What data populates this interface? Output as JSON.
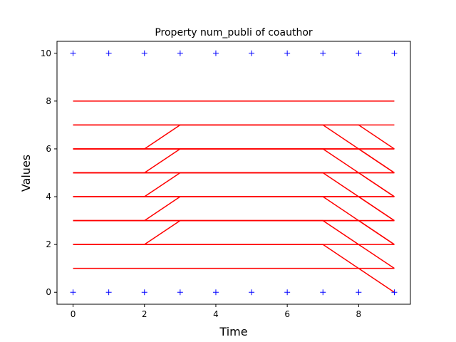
{
  "chart_data": {
    "type": "line",
    "title": "Property num_publi of coauthor",
    "xlabel": "Time",
    "ylabel": "Values",
    "xlim": [
      -0.45,
      9.45
    ],
    "ylim": [
      -0.5,
      10.5
    ],
    "xticks": [
      0,
      2,
      4,
      6,
      8
    ],
    "yticks": [
      0,
      2,
      4,
      6,
      8,
      10
    ],
    "grid": false,
    "line_color": "#ff0000",
    "marker_color": "#0000ff",
    "markers": {
      "style": "plus",
      "points": [
        [
          0,
          10
        ],
        [
          1,
          10
        ],
        [
          2,
          10
        ],
        [
          3,
          10
        ],
        [
          4,
          10
        ],
        [
          5,
          10
        ],
        [
          6,
          10
        ],
        [
          7,
          10
        ],
        [
          8,
          10
        ],
        [
          9,
          10
        ],
        [
          0,
          0
        ],
        [
          1,
          0
        ],
        [
          2,
          0
        ],
        [
          3,
          0
        ],
        [
          4,
          0
        ],
        [
          5,
          0
        ],
        [
          6,
          0
        ],
        [
          7,
          0
        ],
        [
          8,
          0
        ],
        [
          9,
          0
        ]
      ]
    },
    "series": [
      {
        "values": [
          [
            0,
            8
          ],
          [
            9,
            8
          ]
        ]
      },
      {
        "values": [
          [
            0,
            7
          ],
          [
            9,
            7
          ]
        ]
      },
      {
        "values": [
          [
            0,
            6
          ],
          [
            9,
            6
          ]
        ]
      },
      {
        "values": [
          [
            0,
            5
          ],
          [
            9,
            5
          ]
        ]
      },
      {
        "values": [
          [
            0,
            4
          ],
          [
            9,
            4
          ]
        ]
      },
      {
        "values": [
          [
            0,
            3
          ],
          [
            9,
            3
          ]
        ]
      },
      {
        "values": [
          [
            0,
            2
          ],
          [
            9,
            2
          ]
        ]
      },
      {
        "values": [
          [
            0,
            1
          ],
          [
            9,
            1
          ]
        ]
      },
      {
        "values": [
          [
            0,
            6
          ],
          [
            2,
            6
          ],
          [
            3,
            7
          ],
          [
            7,
            7
          ],
          [
            9,
            5
          ]
        ]
      },
      {
        "values": [
          [
            0,
            5
          ],
          [
            2,
            5
          ],
          [
            3,
            6
          ],
          [
            7,
            6
          ],
          [
            9,
            4
          ]
        ]
      },
      {
        "values": [
          [
            0,
            4
          ],
          [
            2,
            4
          ],
          [
            3,
            5
          ],
          [
            7,
            5
          ],
          [
            9,
            3
          ]
        ]
      },
      {
        "values": [
          [
            0,
            3
          ],
          [
            2,
            3
          ],
          [
            3,
            4
          ],
          [
            7,
            4
          ],
          [
            9,
            2
          ]
        ]
      },
      {
        "values": [
          [
            0,
            2
          ],
          [
            2,
            2
          ],
          [
            3,
            3
          ],
          [
            7,
            3
          ],
          [
            9,
            1
          ]
        ]
      },
      {
        "values": [
          [
            0,
            7
          ],
          [
            8,
            7
          ],
          [
            9,
            6
          ]
        ]
      },
      {
        "values": [
          [
            0,
            6
          ],
          [
            8,
            6
          ],
          [
            9,
            5
          ]
        ]
      },
      {
        "values": [
          [
            0,
            5
          ],
          [
            8,
            5
          ],
          [
            9,
            4
          ]
        ]
      },
      {
        "values": [
          [
            0,
            4
          ],
          [
            8,
            4
          ],
          [
            9,
            3
          ]
        ]
      },
      {
        "values": [
          [
            0,
            3
          ],
          [
            8,
            3
          ],
          [
            9,
            2
          ]
        ]
      },
      {
        "values": [
          [
            0,
            2
          ],
          [
            7,
            2
          ],
          [
            9,
            0
          ]
        ]
      },
      {
        "values": [
          [
            0,
            6
          ],
          [
            7,
            6
          ],
          [
            9,
            6
          ]
        ]
      },
      {
        "values": [
          [
            0,
            5
          ],
          [
            7,
            5
          ],
          [
            9,
            5
          ]
        ]
      },
      {
        "values": [
          [
            0,
            4
          ],
          [
            7,
            4
          ],
          [
            9,
            4
          ]
        ]
      },
      {
        "values": [
          [
            0,
            3
          ],
          [
            7,
            3
          ],
          [
            9,
            3
          ]
        ]
      }
    ]
  }
}
